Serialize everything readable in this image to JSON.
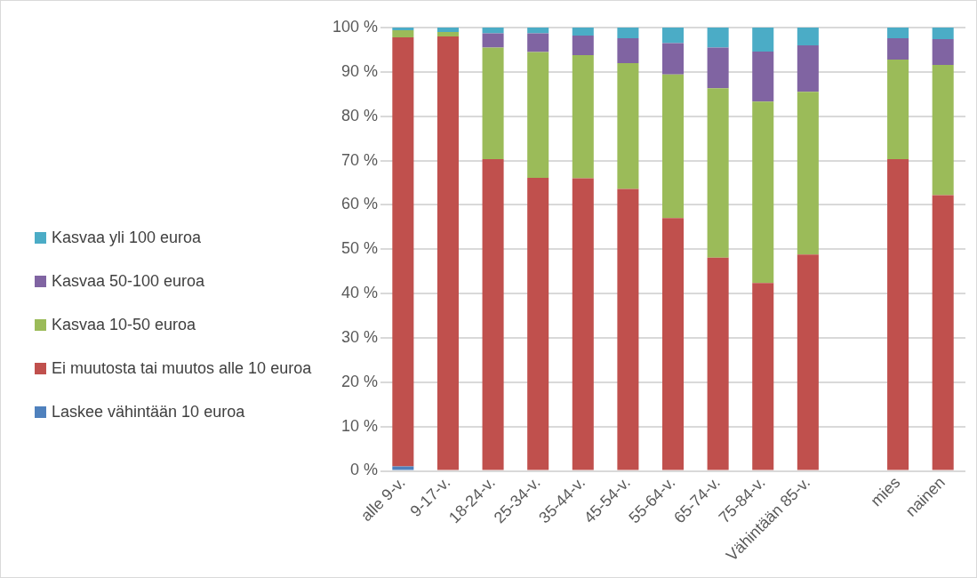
{
  "chart_data": {
    "type": "bar",
    "stacked": true,
    "legend": "left",
    "grid": "y",
    "categories": [
      "alle 9-v.",
      "9-17-v.",
      "18-24-v.",
      "25-34-v.",
      "35-44-v.",
      "45-54-v.",
      "55-64-v.",
      "65-74-v.",
      "75-84-v.",
      "Vähintään 85-v.",
      null,
      "mies",
      "nainen"
    ],
    "ylim": [
      0,
      100
    ],
    "yticks": [
      {
        "value": 0,
        "label": "0 %"
      },
      {
        "value": 10,
        "label": "10 %"
      },
      {
        "value": 20,
        "label": "20 %"
      },
      {
        "value": 30,
        "label": "30 %"
      },
      {
        "value": 40,
        "label": "40 %"
      },
      {
        "value": 50,
        "label": "50 %"
      },
      {
        "value": 60,
        "label": "60 %"
      },
      {
        "value": 70,
        "label": "70 %"
      },
      {
        "value": 80,
        "label": "80 %"
      },
      {
        "value": 90,
        "label": "90 %"
      },
      {
        "value": 100,
        "label": "100 %"
      }
    ],
    "series": [
      {
        "name": "Laskee vähintään 10 euroa",
        "color": "#4f81bd",
        "values": [
          1,
          0,
          0,
          0,
          0,
          0,
          0,
          0,
          0,
          0,
          null,
          0,
          0
        ]
      },
      {
        "name": "Ei muutosta tai muutos alle 10 euroa",
        "color": "#c0504d",
        "values": [
          96.8,
          98,
          70.3,
          66.1,
          66,
          63.6,
          57,
          48.1,
          42.4,
          48.8,
          null,
          70.3,
          62.2
        ]
      },
      {
        "name": "Kasvaa 10-50 euroa",
        "color": "#9bbb59",
        "values": [
          1.6,
          1,
          25.2,
          28.4,
          27.8,
          28.4,
          32.4,
          38.2,
          40.9,
          36.7,
          null,
          22.5,
          29.4
        ]
      },
      {
        "name": "Kasvaa 50-100 euroa",
        "color": "#8064a2",
        "values": [
          0,
          0,
          3.2,
          4.2,
          4.4,
          5.6,
          7.1,
          9.2,
          11.3,
          10.5,
          null,
          4.8,
          5.8
        ]
      },
      {
        "name": "Kasvaa yli 100 euroa",
        "color": "#4bacc6",
        "values": [
          0.6,
          1,
          1.3,
          1.3,
          1.8,
          2.4,
          3.5,
          4.5,
          5.4,
          4,
          null,
          2.4,
          2.6
        ]
      }
    ]
  }
}
